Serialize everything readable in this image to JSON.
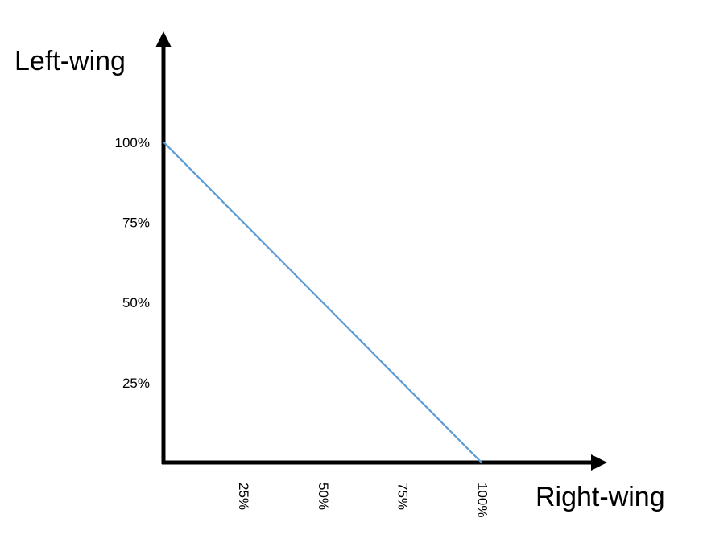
{
  "chart_data": {
    "type": "line",
    "x_label": "Right-wing",
    "y_label": "Left-wing",
    "x": [
      0,
      100
    ],
    "series": [
      {
        "color": "#5b9bd5",
        "values": [
          100,
          0
        ]
      }
    ],
    "xlim": [
      0,
      138
    ],
    "ylim": [
      0,
      133
    ],
    "xticks": [
      {
        "value": 25,
        "label": "25%"
      },
      {
        "value": 50,
        "label": "50%"
      },
      {
        "value": 75,
        "label": "75%"
      },
      {
        "value": 100,
        "label": "100%"
      }
    ],
    "yticks": [
      {
        "value": 25,
        "label": "25%"
      },
      {
        "value": 50,
        "label": "50%"
      },
      {
        "value": 75,
        "label": "75%"
      },
      {
        "value": 100,
        "label": "100%"
      }
    ],
    "grid": false
  }
}
